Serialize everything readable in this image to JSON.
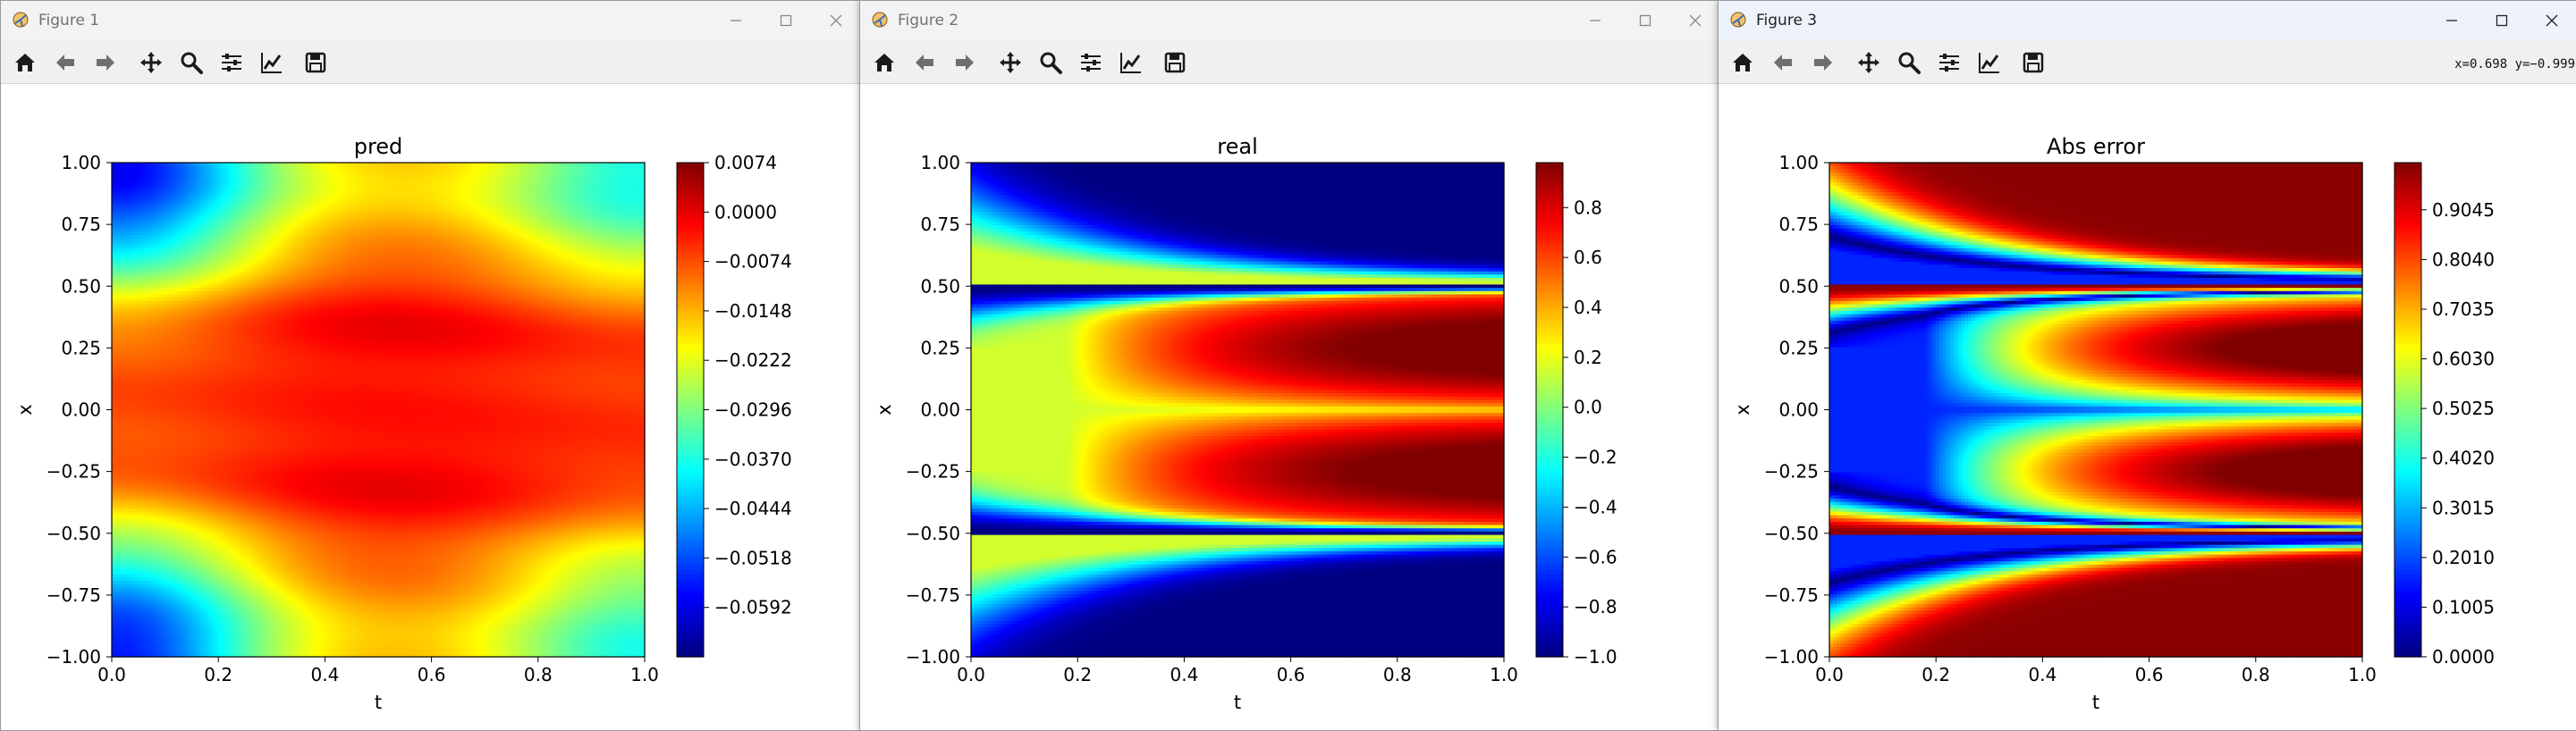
{
  "windows": [
    {
      "title": "Figure 1",
      "plot_title": "pred",
      "coord_readout": "",
      "cbar_ticks": [
        "0.0074",
        "0.0000",
        "−0.0074",
        "−0.0148",
        "−0.0222",
        "−0.0296",
        "−0.0370",
        "−0.0444",
        "−0.0518",
        "−0.0592"
      ]
    },
    {
      "title": "Figure 2",
      "plot_title": "real",
      "coord_readout": "",
      "cbar_ticks": [
        "0.8",
        "0.6",
        "0.4",
        "0.2",
        "0.0",
        "−0.2",
        "−0.4",
        "−0.6",
        "−0.8",
        "−1.0"
      ]
    },
    {
      "title": "Figure 3",
      "plot_title": "Abs error",
      "coord_readout": "x=0.698  y=−0.999",
      "cbar_ticks": [
        "0.9045",
        "0.8040",
        "0.7035",
        "0.6030",
        "0.5025",
        "0.4020",
        "0.3015",
        "0.2010",
        "0.1005",
        "0.0000"
      ]
    }
  ],
  "toolbar_icons": [
    "home-icon",
    "back-arrow-icon",
    "forward-arrow-icon",
    "pan-icon",
    "zoom-icon",
    "configure-subplots-icon",
    "edit-axis-icon",
    "save-icon"
  ],
  "chart_data": [
    {
      "type": "heatmap",
      "title": "pred",
      "xlabel": "t",
      "ylabel": "x",
      "xlim": [
        0.0,
        1.0
      ],
      "ylim": [
        -1.0,
        1.0
      ],
      "xticks": [
        "0.0",
        "0.2",
        "0.4",
        "0.6",
        "0.8",
        "1.0"
      ],
      "yticks": [
        "1.00",
        "0.75",
        "0.50",
        "0.25",
        "0.00",
        "−0.25",
        "−0.50",
        "−0.75",
        "−1.00"
      ],
      "colormap": "jet",
      "clim": [
        -0.0666,
        0.0074
      ]
    },
    {
      "type": "heatmap",
      "title": "real",
      "xlabel": "t",
      "ylabel": "x",
      "xlim": [
        0.0,
        1.0
      ],
      "ylim": [
        -1.0,
        1.0
      ],
      "xticks": [
        "0.0",
        "0.2",
        "0.4",
        "0.6",
        "0.8",
        "1.0"
      ],
      "yticks": [
        "1.00",
        "0.75",
        "0.50",
        "0.25",
        "0.00",
        "−0.25",
        "−0.50",
        "−0.75",
        "−1.00"
      ],
      "colormap": "jet",
      "clim": [
        -1.0,
        0.98
      ]
    },
    {
      "type": "heatmap",
      "title": "Abs error",
      "xlabel": "t",
      "ylabel": "x",
      "xlim": [
        0.0,
        1.0
      ],
      "ylim": [
        -1.0,
        1.0
      ],
      "xticks": [
        "0.0",
        "0.2",
        "0.4",
        "0.6",
        "0.8",
        "1.0"
      ],
      "yticks": [
        "1.00",
        "0.75",
        "0.50",
        "0.25",
        "0.00",
        "−0.25",
        "−0.50",
        "−0.75",
        "−1.00"
      ],
      "colormap": "jet",
      "clim": [
        0.0,
        1.0
      ]
    }
  ]
}
